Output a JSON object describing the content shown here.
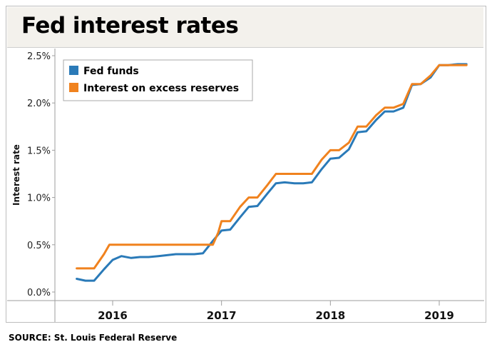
{
  "title": "Fed interest rates",
  "source": "SOURCE: St. Louis Federal Reserve",
  "colors": {
    "fed_funds": "#2a7ab8",
    "ioer": "#f0821e"
  },
  "chart_data": {
    "type": "line",
    "title": "Fed interest rates",
    "xlabel": "",
    "ylabel": "Interest rate",
    "ylim": [
      0,
      2.5
    ],
    "xlim": [
      2015.6,
      2019.5
    ],
    "yticks": [
      0,
      0.5,
      1.0,
      1.5,
      2.0,
      2.5
    ],
    "ytick_labels": [
      "0.0%",
      "0.5%",
      "1.0%",
      "1.5%",
      "2.0%",
      "2.5%"
    ],
    "xticks": [
      2016,
      2017,
      2018,
      2019
    ],
    "xtick_labels": [
      "2016",
      "2017",
      "2018",
      "2019"
    ],
    "legend": "top-left",
    "grid": false,
    "series": [
      {
        "name": "Fed funds",
        "color": "#2a7ab8",
        "x": [
          2015.67,
          2015.75,
          2015.83,
          2015.92,
          2016.0,
          2016.08,
          2016.17,
          2016.25,
          2016.33,
          2016.42,
          2016.5,
          2016.58,
          2016.67,
          2016.75,
          2016.83,
          2016.92,
          2017.0,
          2017.08,
          2017.17,
          2017.25,
          2017.33,
          2017.42,
          2017.5,
          2017.58,
          2017.67,
          2017.75,
          2017.83,
          2017.92,
          2018.0,
          2018.08,
          2018.17,
          2018.25,
          2018.33,
          2018.42,
          2018.5,
          2018.58,
          2018.67,
          2018.75,
          2018.83,
          2018.92,
          2019.0,
          2019.08,
          2019.17,
          2019.25
        ],
        "values": [
          0.14,
          0.12,
          0.12,
          0.24,
          0.34,
          0.38,
          0.36,
          0.37,
          0.37,
          0.38,
          0.39,
          0.4,
          0.4,
          0.4,
          0.41,
          0.54,
          0.65,
          0.66,
          0.79,
          0.9,
          0.91,
          1.04,
          1.15,
          1.16,
          1.15,
          1.15,
          1.16,
          1.3,
          1.41,
          1.42,
          1.51,
          1.69,
          1.7,
          1.82,
          1.91,
          1.91,
          1.95,
          2.19,
          2.2,
          2.27,
          2.4,
          2.4,
          2.41,
          2.41
        ]
      },
      {
        "name": "Interest on excess reserves",
        "color": "#f0821e",
        "x": [
          2015.67,
          2015.75,
          2015.83,
          2015.92,
          2015.97,
          2016.0,
          2016.92,
          2016.97,
          2017.0,
          2017.08,
          2017.17,
          2017.25,
          2017.33,
          2017.42,
          2017.5,
          2017.58,
          2017.67,
          2017.75,
          2017.83,
          2017.92,
          2018.0,
          2018.08,
          2018.17,
          2018.25,
          2018.33,
          2018.42,
          2018.5,
          2018.58,
          2018.67,
          2018.75,
          2018.83,
          2018.92,
          2019.0,
          2019.08,
          2019.17,
          2019.25
        ],
        "values": [
          0.25,
          0.25,
          0.25,
          0.4,
          0.5,
          0.5,
          0.5,
          0.63,
          0.75,
          0.75,
          0.9,
          1.0,
          1.0,
          1.13,
          1.25,
          1.25,
          1.25,
          1.25,
          1.25,
          1.4,
          1.5,
          1.5,
          1.58,
          1.75,
          1.75,
          1.87,
          1.95,
          1.95,
          1.99,
          2.2,
          2.2,
          2.29,
          2.4,
          2.4,
          2.4,
          2.4
        ]
      }
    ]
  }
}
